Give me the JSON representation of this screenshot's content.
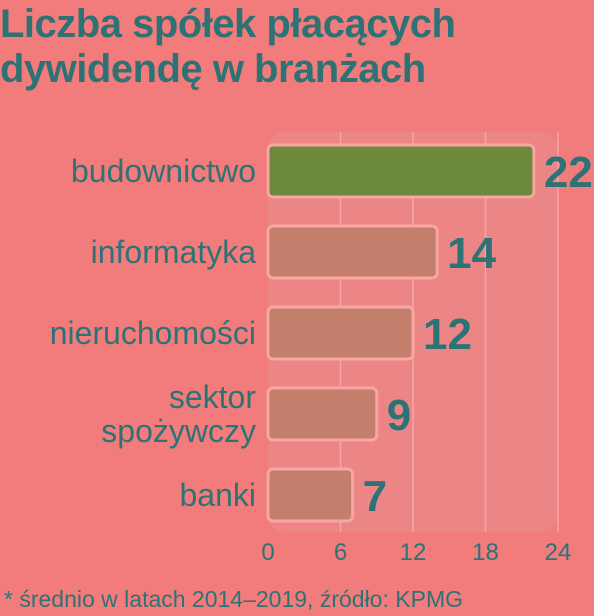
{
  "title_lines": [
    "Liczba spółek płacących",
    "dywidendę w branżach"
  ],
  "footnote": "* średnio w latach 2014–2019, źródło: KPMG",
  "colors": {
    "background": "#f27b7b",
    "text": "#2d7376",
    "bar": "#c47e6c",
    "bar_highlight": "#6d8a3c",
    "bar_border": "#f7a6a4",
    "panel": "#ec8686",
    "grid": "#f6a5a5"
  },
  "chart_data": {
    "type": "bar",
    "orientation": "horizontal",
    "title": "Liczba spółek płacących dywidendę w branżach",
    "categories": [
      "budownictwo",
      "informatyka",
      "nieruchomości",
      "sektor spożywczy",
      "banki"
    ],
    "category_lines": [
      [
        "budownictwo"
      ],
      [
        "informatyka"
      ],
      [
        "nieruchomości"
      ],
      [
        "sektor",
        "spożywczy"
      ],
      [
        "banki"
      ]
    ],
    "values": [
      22,
      14,
      12,
      9,
      7
    ],
    "value_labels": [
      "22",
      "14",
      "12",
      "9",
      "7"
    ],
    "highlight_index": 0,
    "xlim": [
      0,
      24
    ],
    "xticks": [
      0,
      6,
      12,
      18,
      24
    ],
    "xtick_labels": [
      "0",
      "6",
      "12",
      "18",
      "24"
    ],
    "grid": true
  }
}
